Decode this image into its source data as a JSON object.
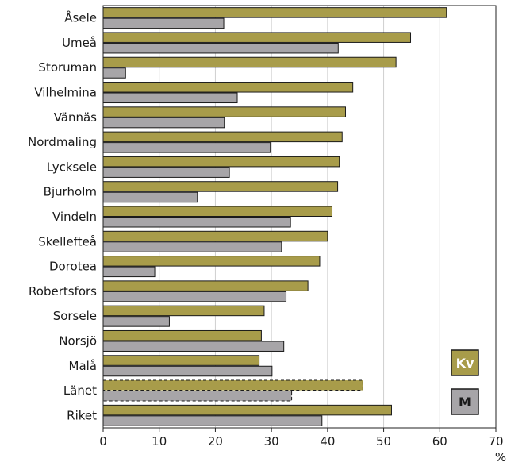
{
  "chart_data": {
    "type": "bar",
    "orientation": "horizontal",
    "categories": [
      "Åsele",
      "Umeå",
      "Storuman",
      "Vilhelmina",
      "Vännäs",
      "Nordmaling",
      "Lycksele",
      "Bjurholm",
      "Vindeln",
      "Skellefteå",
      "Dorotea",
      "Robertsfors",
      "Sorsele",
      "Norsjö",
      "Malå",
      "Länet",
      "Riket"
    ],
    "series": [
      {
        "name": "Kv",
        "color": "#a89c4a",
        "values": [
          61.2,
          54.8,
          52.2,
          44.5,
          43.2,
          42.6,
          42.1,
          41.8,
          40.8,
          40.0,
          38.6,
          36.5,
          28.7,
          28.2,
          27.8,
          46.3,
          51.4
        ]
      },
      {
        "name": "M",
        "color": "#a7a5a8",
        "values": [
          21.5,
          41.9,
          4.0,
          23.9,
          21.6,
          29.8,
          22.5,
          16.8,
          33.4,
          31.8,
          9.2,
          32.6,
          11.8,
          32.2,
          30.1,
          33.6,
          39.0
        ]
      }
    ],
    "dashed_categories": [
      "Länet"
    ],
    "xlim": [
      0,
      70
    ],
    "xticks": [
      0,
      10,
      20,
      30,
      40,
      50,
      60,
      70
    ],
    "xlabel": "%",
    "grid": "vertical",
    "legend_position": "bottom-right"
  }
}
